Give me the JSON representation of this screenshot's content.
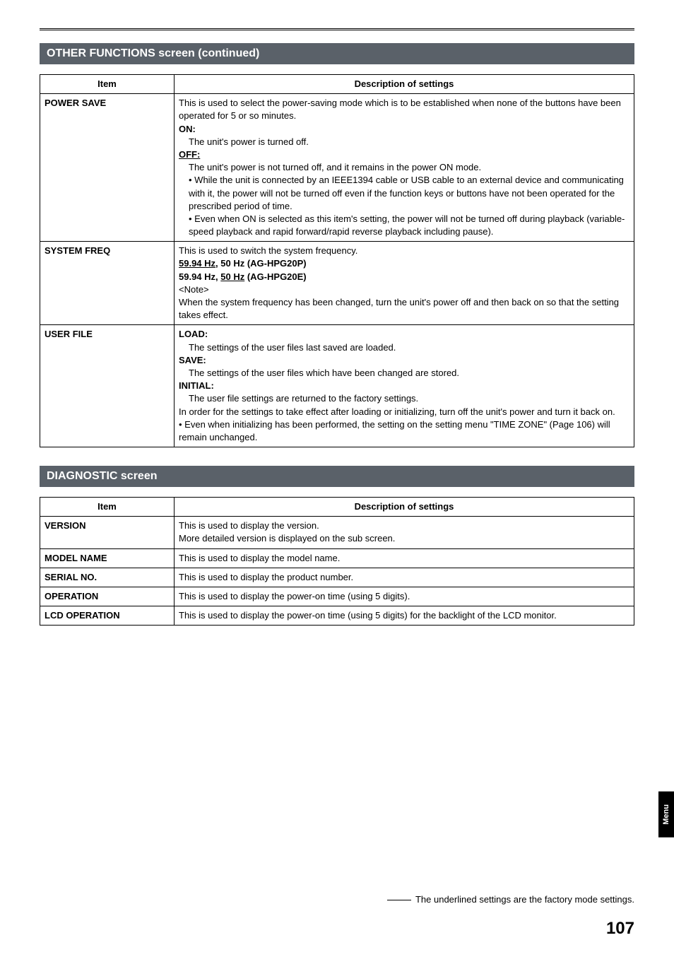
{
  "section1": {
    "title": "OTHER FUNCTIONS screen (continued)",
    "headers": {
      "item": "Item",
      "desc": "Description of settings"
    },
    "rows": {
      "power_save": {
        "item": "POWER SAVE",
        "intro": "This is used to select the power-saving mode which is to be established when none of the buttons have been operated for 5 or so minutes.",
        "on_label": "ON:",
        "on_text": "The unit's power is turned off.",
        "off_label": "OFF:",
        "off_text": "The unit's power is not turned off, and it remains in the power ON mode.",
        "b1": "While the unit is connected by an IEEE1394 cable or USB cable to an external device and communicating with it, the power will not be turned off even if the function keys or buttons have not been operated for the prescribed period of time.",
        "b2": "Even when ON is selected as this item's setting, the power will not be turned off during playback (variable-speed playback and rapid forward/rapid reverse playback including pause)."
      },
      "system_freq": {
        "item": "SYSTEM FREQ",
        "l1": "This is used to switch the system frequency.",
        "l2a": "59.94 Hz",
        "l2b": ", 50 Hz (AG-HPG20P)",
        "l3a": "59.94 Hz, ",
        "l3b": "50 Hz",
        "l3c": " (AG-HPG20E)",
        "l4": "<Note>",
        "l5": "When the system frequency has been changed, turn the unit's power off and then back on so that the setting takes effect."
      },
      "user_file": {
        "item": "USER FILE",
        "load_label": "LOAD:",
        "load_text": "The settings of the user files last saved are loaded.",
        "save_label": "SAVE:",
        "save_text": "The settings of the user files which have been changed are stored.",
        "init_label": "INITIAL:",
        "init_text": "The user file settings are returned to the factory settings.",
        "note": "In order for the settings to take effect after loading or initializing, turn off the unit's power and turn it back on.",
        "bullet": "Even when initializing has been performed, the setting on the setting menu \"TIME ZONE\" (Page 106) will remain unchanged."
      }
    }
  },
  "section2": {
    "title": "DIAGNOSTIC screen",
    "headers": {
      "item": "Item",
      "desc": "Description of settings"
    },
    "rows": {
      "version": {
        "item": "VERSION",
        "d1": "This is used to display the version.",
        "d2": "More detailed version is displayed on the sub screen."
      },
      "model": {
        "item": "MODEL NAME",
        "d": "This is used to display the model name."
      },
      "serial": {
        "item": "SERIAL NO.",
        "d": "This is used to display the product number."
      },
      "operation": {
        "item": "OPERATION",
        "d": "This is used to display the power-on time (using 5 digits)."
      },
      "lcd": {
        "item": "LCD OPERATION",
        "d": "This is used to display the power-on time (using 5 digits) for the backlight of the LCD monitor."
      }
    }
  },
  "side_tab": "Menu",
  "footnote": "The underlined settings are the factory mode settings.",
  "page_number": "107"
}
